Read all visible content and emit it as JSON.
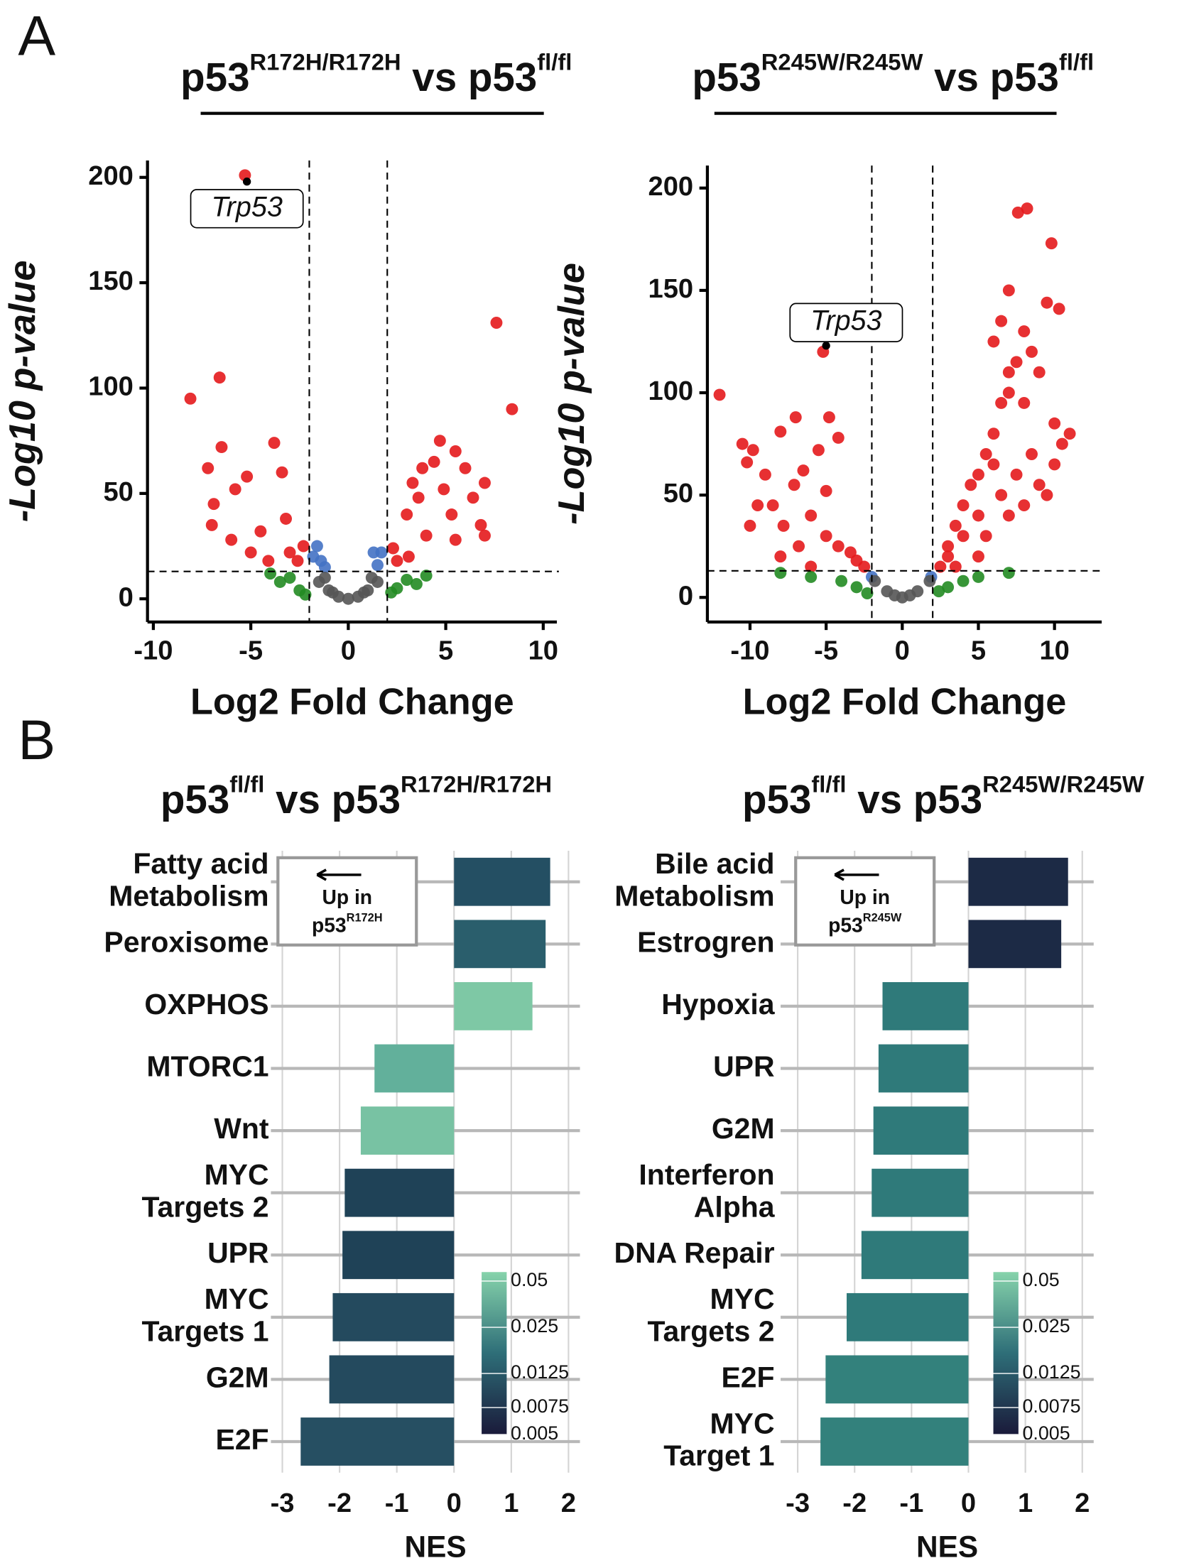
{
  "panels": [
    "A",
    "B"
  ],
  "chart_data": [
    {
      "type": "volcano",
      "title": [
        {
          "text": "p53"
        },
        {
          "text": "R172H/R172H",
          "sup": true
        },
        {
          "text": " vs p53"
        },
        {
          "text": "fl/fl",
          "sup": true
        }
      ],
      "xlabel": "Log2 Fold Change",
      "ylabel": "-Log10 p-value",
      "xlim": [
        -10.3,
        10.7
      ],
      "ylim": [
        -11,
        208
      ],
      "xticks": [
        -10,
        -5,
        0,
        5,
        10
      ],
      "yticks": [
        0,
        50,
        100,
        150,
        200
      ],
      "vlines": [
        -2,
        2
      ],
      "hline": 13,
      "series": [
        {
          "color": "#e41a1c",
          "x": [
            -8.1,
            -6.6,
            -6.5,
            -7.2,
            -6.9,
            -5.8,
            -5.2,
            -3.8,
            -3.4,
            -3.2,
            -4.5,
            -6.0,
            -7.0,
            -5.0,
            -3.0,
            -2.6,
            -4.1,
            -2.3,
            2.3,
            3.0,
            3.3,
            3.6,
            4.4,
            4.7,
            4.9,
            5.5,
            6.0,
            6.4,
            7.0,
            7.6,
            8.4,
            5.3,
            4.0,
            6.8,
            3.1,
            2.5,
            5.5,
            7.0,
            3.8,
            -5.3
          ],
          "values": [
            95,
            105,
            72,
            62,
            45,
            52,
            58,
            74,
            60,
            38,
            32,
            28,
            35,
            22,
            22,
            18,
            18,
            25,
            24,
            40,
            55,
            48,
            65,
            75,
            52,
            70,
            62,
            48,
            55,
            131,
            90,
            40,
            30,
            35,
            20,
            18,
            28,
            30,
            62,
            201
          ]
        },
        {
          "color": "#4472c4",
          "x": [
            -1.6,
            -1.8,
            -1.4,
            1.3,
            1.7,
            1.5,
            -1.2
          ],
          "values": [
            25,
            20,
            18,
            22,
            22,
            16,
            15
          ]
        },
        {
          "color": "#228b22",
          "x": [
            -3.5,
            -2.5,
            -4,
            -3,
            2.5,
            3,
            4,
            3.5,
            2.2,
            -2.2
          ],
          "values": [
            8,
            4,
            12,
            10,
            5,
            9,
            11,
            7,
            3,
            2
          ]
        },
        {
          "color": "#555555",
          "x": [
            0,
            -1,
            1,
            -0.5,
            0.5,
            -1.5,
            1.5,
            -0.8,
            0.8,
            -1.2,
            1.2
          ],
          "values": [
            0,
            4,
            4,
            1,
            1,
            8,
            8,
            3,
            3,
            10,
            10
          ]
        }
      ],
      "highlight": {
        "label": "Trp53",
        "x": -5.2,
        "y": 198,
        "color": "#000000"
      }
    },
    {
      "type": "volcano",
      "title": [
        {
          "text": "p53"
        },
        {
          "text": "R245W/R245W",
          "sup": true
        },
        {
          "text": " vs p53"
        },
        {
          "text": "fl/fl",
          "sup": true
        }
      ],
      "xlabel": "Log2 Fold Change",
      "ylabel": "-Log10 p-value",
      "xlim": [
        -12.8,
        13.1
      ],
      "ylim": [
        -12,
        211
      ],
      "xticks": [
        -10,
        -5,
        0,
        5,
        10
      ],
      "yticks": [
        0,
        50,
        100,
        150,
        200
      ],
      "vlines": [
        -2,
        2
      ],
      "hline": 13,
      "series": [
        {
          "color": "#e41a1c",
          "x": [
            -12,
            -10.5,
            -9.8,
            -9,
            -10.2,
            -8,
            -7,
            -6.5,
            -5.2,
            -4.8,
            -4.2,
            -5.5,
            -5.0,
            -7.1,
            -6.0,
            -8.5,
            -7.8,
            -9.5,
            -10,
            -6.8,
            -5,
            -4.2,
            -3.4,
            -3,
            -2.5,
            -8,
            -6,
            2.5,
            3,
            3.5,
            4,
            4.5,
            5,
            5.5,
            6,
            6.5,
            7,
            7.5,
            7.6,
            8.2,
            9.8,
            9.5,
            10.3,
            8,
            8.5,
            9,
            6,
            7,
            8,
            10,
            11,
            10.5,
            10,
            8.5,
            7.5,
            9,
            6.5,
            5,
            4,
            3,
            5.5,
            7,
            8,
            9.5,
            6,
            3.5,
            5,
            6.5,
            7
          ],
          "values": [
            99,
            75,
            72,
            60,
            66,
            81,
            88,
            62,
            120,
            88,
            78,
            72,
            52,
            55,
            40,
            45,
            35,
            45,
            35,
            25,
            30,
            25,
            22,
            18,
            15,
            20,
            15,
            15,
            25,
            35,
            45,
            55,
            60,
            70,
            80,
            95,
            110,
            115,
            188,
            190,
            173,
            144,
            141,
            130,
            120,
            110,
            125,
            100,
            95,
            85,
            80,
            75,
            65,
            70,
            60,
            55,
            50,
            40,
            30,
            20,
            30,
            40,
            45,
            50,
            65,
            15,
            20,
            135,
            150
          ]
        },
        {
          "color": "#4472c4",
          "x": [
            -2,
            1.9
          ],
          "values": [
            10,
            10
          ]
        },
        {
          "color": "#228b22",
          "x": [
            -4,
            -6,
            -3,
            -2.3,
            -8,
            3,
            5,
            7,
            2.4,
            4
          ],
          "values": [
            8,
            10,
            5,
            2,
            12,
            5,
            10,
            12,
            3,
            8
          ]
        },
        {
          "color": "#555555",
          "x": [
            0,
            -1,
            1,
            -1.8,
            1.8,
            -0.5,
            0.5
          ],
          "values": [
            0,
            3,
            3,
            8,
            8,
            1,
            1
          ]
        }
      ],
      "highlight": {
        "label": "Trp53",
        "x": -5.0,
        "y": 123,
        "color": "#000000"
      }
    },
    {
      "type": "hbar",
      "title": [
        {
          "text": "p53"
        },
        {
          "text": "fl/fl",
          "sup": true
        },
        {
          "text": " vs p53"
        },
        {
          "text": "R172H/R172H",
          "sup": true
        }
      ],
      "xlabel": "NES",
      "categories": [
        "Fatty acid\nMetabolism",
        "Peroxisome",
        "OXPHOS",
        "MTORC1",
        "Wnt",
        "MYC\nTargets 2",
        "UPR",
        "MYC\nTargets 1",
        "G2M",
        "E2F"
      ],
      "values": [
        1.68,
        1.6,
        1.37,
        -1.39,
        -1.63,
        -1.91,
        -1.95,
        -2.12,
        -2.18,
        -2.68
      ],
      "colors": [
        "#244f63",
        "#2a5e6c",
        "#7ec8a5",
        "#62b09b",
        "#78c2a3",
        "#1f4257",
        "#1f4257",
        "#244a5e",
        "#244a5e",
        "#264f62"
      ],
      "xlim": [
        -3.2,
        2.2
      ],
      "xticks": [
        -3,
        -2,
        -1,
        0,
        1,
        2
      ],
      "note": {
        "line": "Up in",
        "parts": [
          {
            "text": "p53"
          },
          {
            "text": "R172H",
            "sup": true
          }
        ]
      },
      "colorbar": {
        "lim": [
          0.005,
          0.05
        ],
        "log": true,
        "ticks": [
          0.05,
          0.025,
          0.0125,
          0.0075,
          0.005
        ],
        "colors": [
          "#1a1a3a",
          "#2e6e78",
          "#86d3ab"
        ]
      }
    },
    {
      "type": "hbar",
      "title": [
        {
          "text": "p53"
        },
        {
          "text": "fl/fl",
          "sup": true
        },
        {
          "text": " vs p53"
        },
        {
          "text": "R245W/R245W",
          "sup": true
        }
      ],
      "xlabel": "NES",
      "categories": [
        "Bile acid\nMetabolism",
        "Estrogren",
        "Hypoxia",
        "UPR",
        "G2M",
        "Interferon\nAlpha",
        "DNA Repair",
        "MYC\nTargets 2",
        "E2F",
        "MYC\nTarget 1"
      ],
      "values": [
        1.75,
        1.63,
        -1.51,
        -1.58,
        -1.67,
        -1.7,
        -1.88,
        -2.14,
        -2.51,
        -2.6
      ],
      "colors": [
        "#1c2a45",
        "#1c2a45",
        "#2f7a7a",
        "#2f7a7a",
        "#2f7a7a",
        "#2f7a7a",
        "#2f7a7a",
        "#2f7a7a",
        "#33817c",
        "#33817c"
      ],
      "xlim": [
        -3.3,
        2.2
      ],
      "xticks": [
        -3,
        -2,
        -1,
        0,
        1,
        2
      ],
      "note": {
        "line": "Up in",
        "parts": [
          {
            "text": "p53"
          },
          {
            "text": "R245W",
            "sup": true
          }
        ]
      },
      "colorbar": {
        "lim": [
          0.005,
          0.05
        ],
        "log": true,
        "ticks": [
          0.05,
          0.025,
          0.0125,
          0.0075,
          0.005
        ],
        "colors": [
          "#1a1a3a",
          "#2e6e78",
          "#86d3ab"
        ]
      }
    }
  ]
}
